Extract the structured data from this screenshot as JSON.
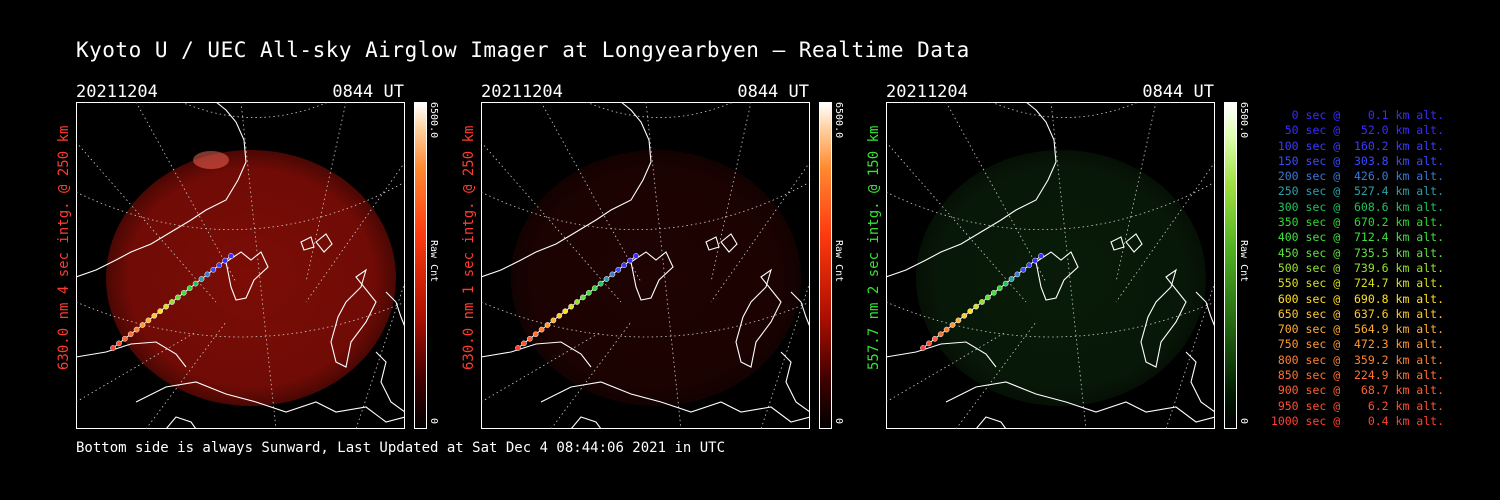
{
  "title": "Kyoto U / UEC All-sky Airglow Imager at Longyearbyen — Realtime Data",
  "footer": "Bottom side is always Sunward, Last Updated at Sat Dec  4 08:44:06 2021 in UTC",
  "panels": [
    {
      "date": "20211204",
      "time": "0844 UT",
      "ylabel": "630.0 nm 4 sec intg. @ 250 km",
      "cbar_max": "6500.0",
      "cbar_min": "0",
      "cbar_unit": "Raw Cnt",
      "color": "#ff3b30",
      "cmap": "red",
      "intensity": 0.62
    },
    {
      "date": "20211204",
      "time": "0844 UT",
      "ylabel": "630.0 nm 1 sec intg. @ 250 km",
      "cbar_max": "6500.0",
      "cbar_min": "0",
      "cbar_unit": "Raw Cnt",
      "color": "#ff3b30",
      "cmap": "red",
      "intensity": 0.15
    },
    {
      "date": "20211204",
      "time": "0844 UT",
      "ylabel": "557.7 nm 2 sec intg. @ 150 km",
      "cbar_max": "6500.0",
      "cbar_min": "0",
      "cbar_unit": "Raw Cnt",
      "color": "#33e533",
      "cmap": "green",
      "intensity": 0.22
    }
  ],
  "legend": [
    {
      "text": "   0 sec @    0.1 km alt.",
      "color": "#3b2bff"
    },
    {
      "text": "  50 sec @   52.0 km alt.",
      "color": "#3b2bff"
    },
    {
      "text": " 100 sec @  160.2 km alt.",
      "color": "#3b3bff"
    },
    {
      "text": " 150 sec @  303.8 km alt.",
      "color": "#3b4bff"
    },
    {
      "text": " 200 sec @  426.0 km alt.",
      "color": "#3a78d8"
    },
    {
      "text": " 250 sec @  527.4 km alt.",
      "color": "#2aa0a8"
    },
    {
      "text": " 300 sec @  608.6 km alt.",
      "color": "#20c060"
    },
    {
      "text": " 350 sec @  670.2 km alt.",
      "color": "#30d830"
    },
    {
      "text": " 400 sec @  712.4 km alt.",
      "color": "#40e040"
    },
    {
      "text": " 450 sec @  735.5 km alt.",
      "color": "#60e040"
    },
    {
      "text": " 500 sec @  739.6 km alt.",
      "color": "#9ae030"
    },
    {
      "text": " 550 sec @  724.7 km alt.",
      "color": "#d8e020"
    },
    {
      "text": " 600 sec @  690.8 km alt.",
      "color": "#ffe020"
    },
    {
      "text": " 650 sec @  637.6 km alt.",
      "color": "#ffc830"
    },
    {
      "text": " 700 sec @  564.9 km alt.",
      "color": "#ffb030"
    },
    {
      "text": " 750 sec @  472.3 km alt.",
      "color": "#ff9830"
    },
    {
      "text": " 800 sec @  359.2 km alt.",
      "color": "#ff8030"
    },
    {
      "text": " 850 sec @  224.9 km alt.",
      "color": "#ff7030"
    },
    {
      "text": " 900 sec @   68.7 km alt.",
      "color": "#ff6030"
    },
    {
      "text": " 950 sec @    6.2 km alt.",
      "color": "#ff5030"
    },
    {
      "text": "1000 sec @    0.4 km alt.",
      "color": "#ff4030"
    }
  ]
}
